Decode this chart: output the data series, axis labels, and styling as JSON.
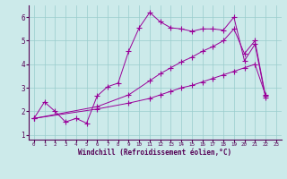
{
  "xlabel": "Windchill (Refroidissement éolien,°C)",
  "bg_color": "#cceaea",
  "grid_color": "#99cccc",
  "line_color": "#990099",
  "xlim": [
    -0.5,
    23.5
  ],
  "ylim": [
    0.8,
    6.5
  ],
  "xticks": [
    0,
    1,
    2,
    3,
    4,
    5,
    6,
    7,
    8,
    9,
    10,
    11,
    12,
    13,
    14,
    15,
    16,
    17,
    18,
    19,
    20,
    21,
    22,
    23
  ],
  "yticks": [
    1,
    2,
    3,
    4,
    5,
    6
  ],
  "series1_x": [
    0,
    1,
    2,
    3,
    4,
    5,
    6,
    7,
    8,
    9,
    10,
    11,
    12,
    13,
    14,
    15,
    16,
    17,
    18,
    19,
    20,
    21,
    22
  ],
  "series1_y": [
    1.7,
    2.4,
    2.0,
    1.55,
    1.7,
    1.5,
    2.65,
    3.05,
    3.2,
    4.55,
    5.55,
    6.2,
    5.8,
    5.55,
    5.5,
    5.4,
    5.5,
    5.5,
    5.45,
    6.0,
    4.15,
    4.85,
    2.6
  ],
  "series2_x": [
    0,
    6,
    9,
    11,
    12,
    13,
    14,
    15,
    16,
    17,
    18,
    19,
    20,
    21,
    22
  ],
  "series2_y": [
    1.7,
    2.1,
    2.35,
    2.55,
    2.7,
    2.85,
    3.0,
    3.1,
    3.25,
    3.4,
    3.55,
    3.7,
    3.85,
    4.0,
    2.7
  ],
  "series3_x": [
    0,
    6,
    9,
    11,
    12,
    13,
    14,
    15,
    16,
    17,
    18,
    19,
    20,
    21,
    22
  ],
  "series3_y": [
    1.7,
    2.2,
    2.7,
    3.3,
    3.6,
    3.85,
    4.1,
    4.3,
    4.55,
    4.75,
    5.0,
    5.5,
    4.45,
    5.0,
    2.65
  ]
}
